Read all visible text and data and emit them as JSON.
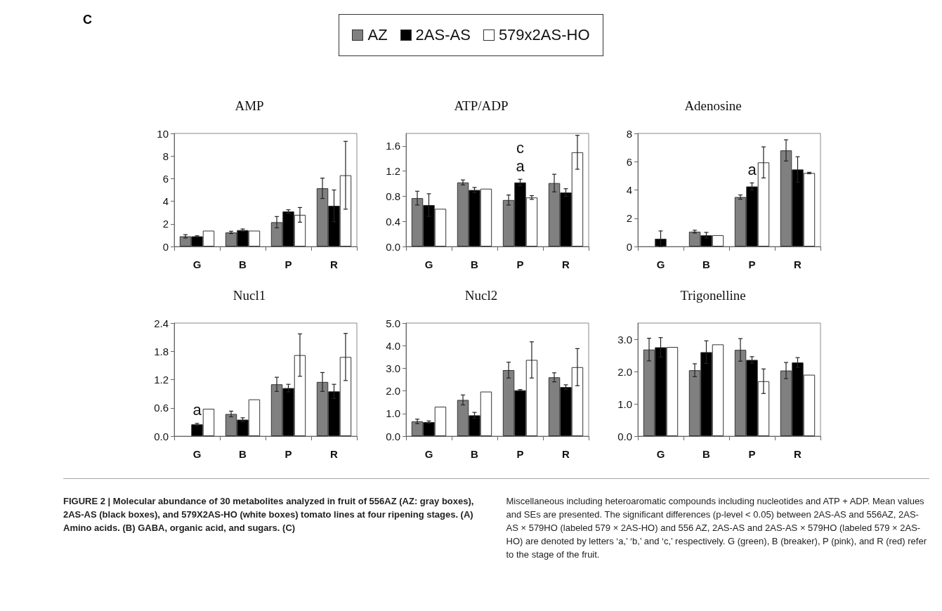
{
  "chart_data": [
    {
      "type": "bar",
      "title": "AMP",
      "categories": [
        "G",
        "B",
        "P",
        "R"
      ],
      "legend": "top",
      "grid": false,
      "ylim": [
        0,
        10
      ],
      "yticks": [
        0,
        2,
        4,
        6,
        8,
        10
      ],
      "annotations": [
        "C",
        "FIGURE 2 | Molecular abundance of 30 metabolites analyzed in fruit of 556AZ (AZ: gray boxes), 2AS-AS (black boxes), and 579X2AS-HO (white boxes) tomato lines at four ripening stages. (A) Amino acids. (B) GABA, organic acid, and sugars. (C)",
        "Miscellaneous including heteroaromatic compounds including nucleotides and ATP + ADP. Mean values and SEs are presented. The significant differences (p-level < 0.05) between 2AS-AS and 556AZ, 2AS-AS × 579HO (labeled 579 × 2AS-HO) and 556 AZ, 2AS-AS and 2AS-AS × 579HO (labeled 579 × 2AS-HO) are denoted by letters ‘a,’ ‘b,’ and ‘c,’ respectively. G (green), B (breaker), P (pink), and R (red) refer to the stage of the fruit."
      ],
      "series": [
        {
          "name": "AZ",
          "color": "#808080",
          "values": [
            0.9,
            1.25,
            2.15,
            5.15
          ],
          "errors": [
            0.15,
            0.1,
            0.5,
            0.9
          ]
        },
        {
          "name": "2AS-AS",
          "color": "#000000",
          "values": [
            0.9,
            1.45,
            3.1,
            3.6
          ],
          "errors": [
            0.05,
            0.1,
            0.15,
            1.4
          ]
        },
        {
          "name": "579x2AS-HO",
          "color": "#ffffff",
          "values": [
            1.4,
            1.4,
            2.8,
            6.3
          ],
          "errors": [
            null,
            null,
            0.65,
            3.0
          ]
        }
      ]
    },
    {
      "type": "bar",
      "title": "ATP/ADP",
      "categories": [
        "G",
        "B",
        "P",
        "R"
      ],
      "grid": false,
      "ylim": [
        0,
        1.8
      ],
      "yticks": [
        {
          "value": 0,
          "label": "0.0"
        },
        0.4,
        0.8,
        1.2,
        1.6
      ],
      "annotations": [
        {
          "text": "a",
          "x": "P",
          "y": 1.02
        },
        {
          "text": "c",
          "x": "P",
          "y": 1.02
        }
      ],
      "series": [
        {
          "color": "#808080",
          "values": [
            0.77,
            1.02,
            0.74,
            1.01
          ],
          "errors": [
            0.11,
            0.04,
            0.08,
            0.14
          ]
        },
        {
          "color": "#000000",
          "values": [
            0.66,
            0.9,
            1.02,
            0.86
          ],
          "errors": [
            0.18,
            0.04,
            0.05,
            0.06
          ]
        },
        {
          "color": "#ffffff",
          "values": [
            0.6,
            0.92,
            0.78,
            1.5
          ],
          "errors": [
            null,
            null,
            0.03,
            0.27
          ]
        }
      ]
    },
    {
      "type": "bar",
      "title": "Adenosine",
      "categories": [
        "G",
        "B",
        "P",
        "R"
      ],
      "grid": false,
      "ylim": [
        0,
        8
      ],
      "yticks": [
        0,
        2,
        4,
        6,
        8
      ],
      "annotations": [
        {
          "text": "a",
          "x": "P",
          "y": 4.25
        }
      ],
      "series": [
        {
          "color": "#808080",
          "values": [
            0,
            1.05,
            3.5,
            6.8
          ],
          "errors": [
            null,
            0.1,
            0.15,
            0.75
          ]
        },
        {
          "color": "#000000",
          "values": [
            0.55,
            0.8,
            4.25,
            5.45
          ],
          "errors": [
            0.55,
            0.2,
            0.25,
            0.9
          ]
        },
        {
          "color": "#ffffff",
          "values": [
            0,
            0.8,
            5.95,
            5.2
          ],
          "errors": [
            null,
            null,
            1.1,
            0.05
          ]
        }
      ]
    },
    {
      "type": "bar",
      "title": "Nucl1",
      "categories": [
        "G",
        "B",
        "P",
        "R"
      ],
      "grid": false,
      "ylim": [
        0,
        2.4
      ],
      "yticks": [
        {
          "value": 0,
          "label": "0.0"
        },
        0.6,
        1.2,
        1.8,
        2.4
      ],
      "annotations": [
        {
          "text": "a",
          "x": "G",
          "y": 0.25
        }
      ],
      "series": [
        {
          "color": "#808080",
          "values": [
            0,
            0.47,
            1.1,
            1.15
          ],
          "errors": [
            null,
            0.06,
            0.15,
            0.2
          ]
        },
        {
          "color": "#000000",
          "values": [
            0.25,
            0.35,
            1.02,
            0.95
          ],
          "errors": [
            0.02,
            0.04,
            0.08,
            0.15
          ]
        },
        {
          "color": "#ffffff",
          "values": [
            0.58,
            0.78,
            1.72,
            1.68
          ],
          "errors": [
            null,
            null,
            0.45,
            0.5
          ]
        }
      ]
    },
    {
      "type": "bar",
      "title": "Nucl2",
      "categories": [
        "G",
        "B",
        "P",
        "R"
      ],
      "grid": false,
      "ylim": [
        0,
        5
      ],
      "yticks": [
        {
          "value": 0,
          "label": "0.0"
        },
        {
          "value": 1,
          "label": "1.0"
        },
        {
          "value": 2,
          "label": "2.0"
        },
        {
          "value": 3,
          "label": "3.0"
        },
        {
          "value": 4,
          "label": "4.0"
        },
        {
          "value": 5,
          "label": "5.0"
        }
      ],
      "series": [
        {
          "color": "#808080",
          "values": [
            0.65,
            1.6,
            2.92,
            2.6
          ],
          "errors": [
            0.1,
            0.22,
            0.35,
            0.2
          ]
        },
        {
          "color": "#000000",
          "values": [
            0.62,
            0.92,
            2.03,
            2.17
          ],
          "errors": [
            0.05,
            0.13,
            0.03,
            0.1
          ]
        },
        {
          "color": "#ffffff",
          "values": [
            1.3,
            1.97,
            3.37,
            3.05
          ],
          "errors": [
            null,
            null,
            0.8,
            0.82
          ]
        }
      ]
    },
    {
      "type": "bar",
      "title": "Trigonelline",
      "categories": [
        "G",
        "B",
        "P",
        "R"
      ],
      "grid": false,
      "ylim": [
        0,
        3.5
      ],
      "yticks": [
        {
          "value": 0,
          "label": "0.0"
        },
        {
          "value": 1,
          "label": "1.0"
        },
        {
          "value": 2,
          "label": "2.0"
        },
        {
          "value": 3,
          "label": "3.0"
        }
      ],
      "series": [
        {
          "color": "#808080",
          "values": [
            2.68,
            2.04,
            2.67,
            2.03
          ],
          "errors": [
            0.35,
            0.2,
            0.35,
            0.25
          ]
        },
        {
          "color": "#000000",
          "values": [
            2.75,
            2.6,
            2.36,
            2.28
          ],
          "errors": [
            0.3,
            0.35,
            0.1,
            0.15
          ]
        },
        {
          "color": "#ffffff",
          "values": [
            2.76,
            2.84,
            1.7,
            1.9
          ],
          "errors": [
            null,
            null,
            0.38,
            null
          ]
        }
      ]
    }
  ]
}
